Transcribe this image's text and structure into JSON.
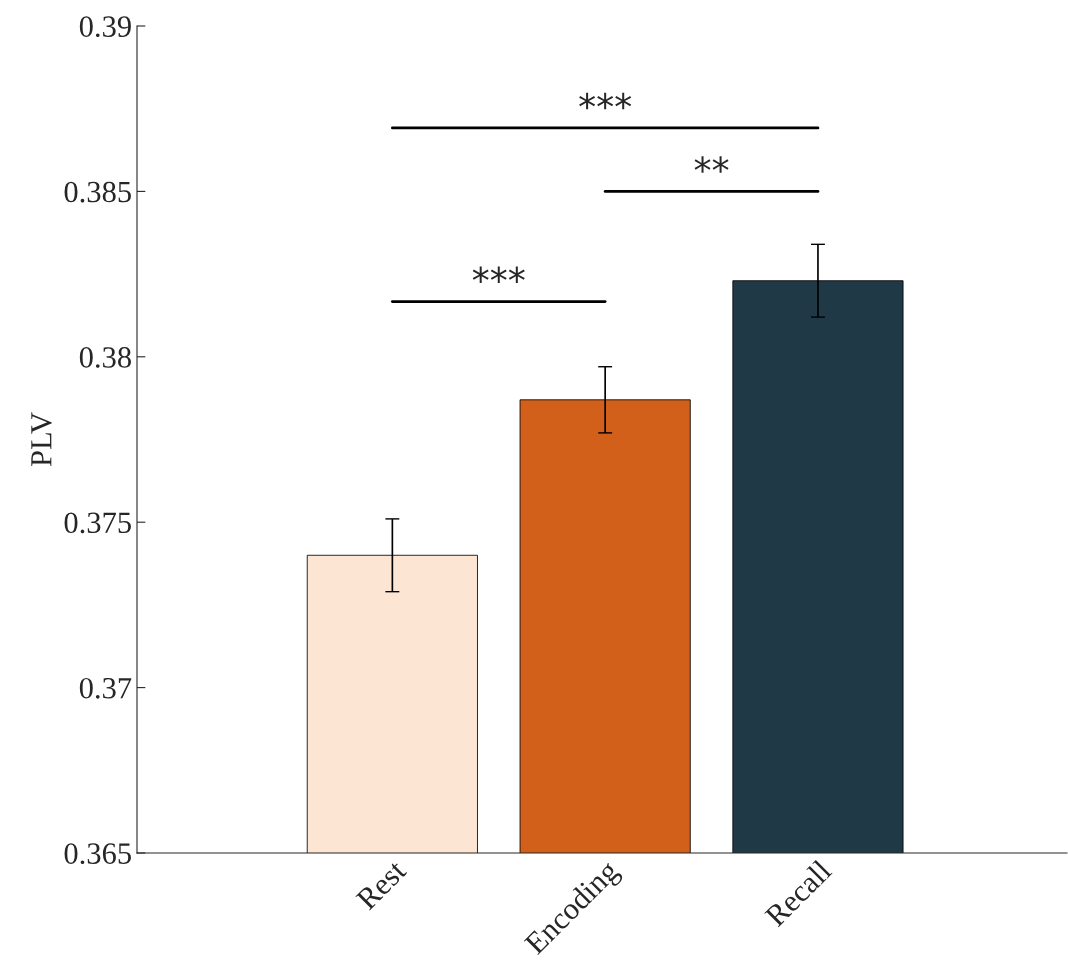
{
  "chart_data": {
    "type": "bar",
    "ylabel": "PLV",
    "categories": [
      "Rest",
      "Encoding",
      "Recall"
    ],
    "values": [
      0.374,
      0.3787,
      0.3823
    ],
    "errors": [
      0.0011,
      0.001,
      0.0011
    ],
    "colors": [
      "#fde5d4",
      "#d2601a",
      "#1f3a46"
    ],
    "ylim": [
      0.365,
      0.39
    ],
    "yticks": [
      0.365,
      0.37,
      0.375,
      0.38,
      0.385,
      0.39
    ],
    "annotations": [
      "***",
      "**",
      "***"
    ]
  }
}
